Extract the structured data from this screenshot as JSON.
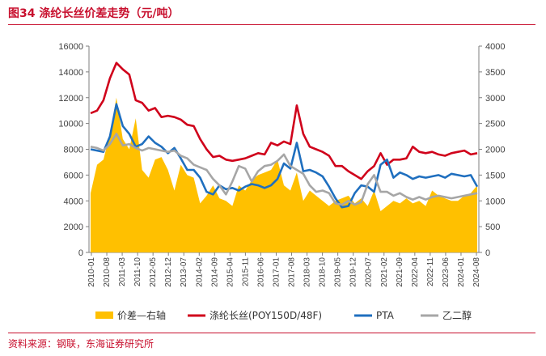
{
  "header": {
    "title": "图34  涤纶长丝价差走势（元/吨）"
  },
  "footer": {
    "source": "资料来源：钢联，东海证券研究所"
  },
  "chart_data": {
    "type": "line",
    "x_ticks": [
      "2010-01",
      "2010-08",
      "2011-03",
      "2011-10",
      "2012-05",
      "2012-12",
      "2013-07",
      "2014-02",
      "2014-09",
      "2015-04",
      "2015-11",
      "2016-06",
      "2017-01",
      "2017-08",
      "2018-03",
      "2018-10",
      "2019-05",
      "2019-12",
      "2020-07",
      "2021-02",
      "2021-09",
      "2022-04",
      "2022-11",
      "2023-06",
      "2024-01",
      "2024-08"
    ],
    "y_left": {
      "range": [
        0,
        16000
      ],
      "ticks": [
        "0",
        "2000",
        "4000",
        "6000",
        "8000",
        "10000",
        "12000",
        "14000",
        "16000"
      ]
    },
    "y_right": {
      "range": [
        0,
        4000
      ],
      "ticks": [
        "0",
        "500",
        "1000",
        "1500",
        "2000",
        "2500",
        "3000",
        "3500",
        "4000"
      ]
    },
    "series": [
      {
        "name": "价差—右轴",
        "kind": "area",
        "axis": "right",
        "color": "#FFC000",
        "values": [
          1150,
          1700,
          1800,
          2300,
          3000,
          2200,
          2000,
          2600,
          1600,
          1450,
          1800,
          1850,
          1600,
          1200,
          1700,
          1500,
          1450,
          950,
          1100,
          1300,
          1050,
          1000,
          900,
          1300,
          1200,
          1400,
          1500,
          1550,
          1600,
          1800,
          1300,
          1200,
          1550,
          1000,
          1200,
          1100,
          1000,
          900,
          1000,
          1050,
          1100,
          950,
          1050,
          900,
          1200,
          800,
          900,
          1000,
          950,
          1050,
          950,
          1000,
          900,
          1200,
          1100,
          1050,
          1000,
          1000,
          1100,
          1150,
          1300
        ]
      },
      {
        "name": "涤纶长丝(POY150D/48F)",
        "kind": "line",
        "axis": "left",
        "color": "#D0021B",
        "values": [
          10800,
          11000,
          11800,
          13500,
          14700,
          14200,
          13800,
          11800,
          11600,
          11000,
          11200,
          10500,
          10600,
          10500,
          10300,
          9900,
          9800,
          8800,
          8000,
          7400,
          7500,
          7200,
          7100,
          7200,
          7300,
          7500,
          7700,
          7600,
          8500,
          8300,
          8600,
          8400,
          11400,
          9200,
          8200,
          8000,
          7800,
          7500,
          6700,
          6700,
          6300,
          6000,
          5700,
          6300,
          6700,
          7700,
          6800,
          7200,
          7200,
          7300,
          8200,
          7800,
          7700,
          7800,
          7600,
          7500,
          7700,
          7800,
          7900,
          7600,
          7700
        ]
      },
      {
        "name": "PTA",
        "kind": "line",
        "axis": "left",
        "color": "#1F6FBF",
        "values": [
          8000,
          7900,
          7800,
          9000,
          11500,
          9800,
          9200,
          8200,
          8400,
          9000,
          8500,
          8200,
          7700,
          8100,
          7300,
          6400,
          6400,
          5800,
          4700,
          4500,
          5200,
          4900,
          5000,
          4800,
          5100,
          5300,
          5200,
          5000,
          5200,
          5700,
          6900,
          6500,
          8500,
          6300,
          6400,
          6200,
          5900,
          5100,
          4200,
          3500,
          3600,
          4600,
          5200,
          5100,
          4700,
          6800,
          7200,
          5800,
          6200,
          6000,
          5700,
          5900,
          5800,
          5900,
          6000,
          5800,
          6100,
          6000,
          5900,
          6000,
          5100
        ]
      },
      {
        "name": "乙二醇",
        "kind": "line",
        "axis": "left",
        "color": "#A6A6A6",
        "values": [
          8200,
          8100,
          7900,
          8400,
          9200,
          8300,
          8400,
          8100,
          7900,
          8100,
          8000,
          7900,
          7800,
          7900,
          7500,
          7300,
          6800,
          6600,
          6400,
          5700,
          5200,
          4500,
          5500,
          6700,
          6500,
          5500,
          6300,
          6700,
          6800,
          7100,
          7600,
          6700,
          6400,
          6100,
          5200,
          4700,
          4800,
          4600,
          3800,
          3700,
          4000,
          3700,
          3900,
          5300,
          6000,
          4700,
          4700,
          4400,
          4600,
          4300,
          4100,
          4300,
          4100,
          4300,
          4400,
          4300,
          4200,
          4300,
          4400,
          4500,
          4600
        ]
      }
    ],
    "legend_position": "bottom"
  }
}
